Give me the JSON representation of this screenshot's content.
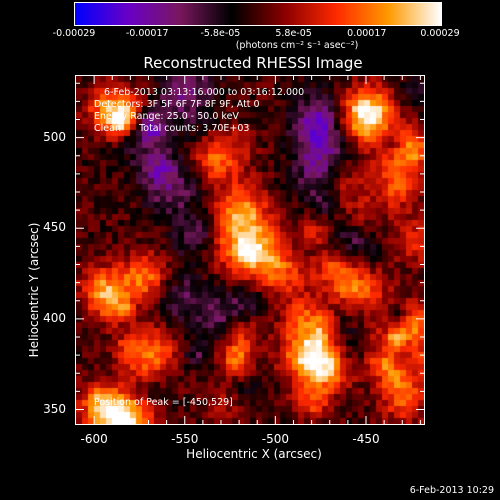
{
  "colorbar": {
    "ticks": [
      "-0.00029",
      "-0.00017",
      "-5.8e-05",
      "5.8e-05",
      "0.00017",
      "0.00029"
    ],
    "unit": "(photons cm⁻² s⁻¹ asec⁻²)",
    "colors": [
      "#0000ff",
      "#6a00c8",
      "#7a1860",
      "#000000",
      "#8a0000",
      "#ff2a00",
      "#ff9a00",
      "#ffffff"
    ]
  },
  "chart_data": {
    "type": "heatmap",
    "title": "Reconstructed RHESSI Image",
    "xlabel": "Heliocentric X (arcsec)",
    "ylabel": "Heliocentric Y (arcsec)",
    "xlim": [
      -610,
      -418
    ],
    "ylim": [
      342,
      534
    ],
    "xticks": [
      "-600",
      "-550",
      "-500",
      "-450"
    ],
    "yticks": [
      "500",
      "450",
      "400",
      "350"
    ],
    "vmin": -0.00029,
    "vmax": 0.00029,
    "peak_position": [
      -450,
      529
    ]
  },
  "info": {
    "time": "6-Feb-2013 03:13:16.000 to 03:16:12.000",
    "detectors": "Detectors: 3F 5F 6F 7F 8F 9F, Att 0",
    "energy": "Energy Range: 25.0 - 50.0 keV",
    "method": "Clean      Total counts: 3.70E+03",
    "peak": "Position of Peak = [-450,529]"
  },
  "timestamp": "6-Feb-2013 10:29"
}
